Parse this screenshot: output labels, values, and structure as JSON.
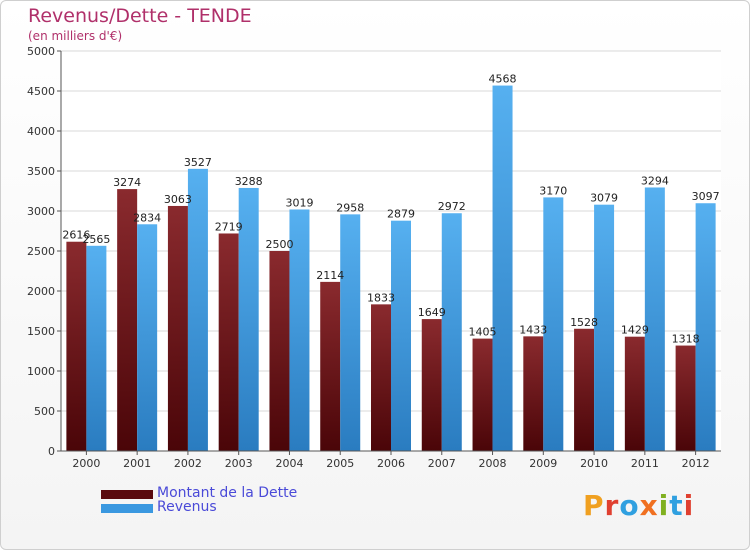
{
  "chart_data": {
    "type": "bar",
    "title": "Revenus/Dette - TENDE",
    "subtitle": "(en milliers d'€)",
    "categories": [
      "2000",
      "2001",
      "2002",
      "2003",
      "2004",
      "2005",
      "2006",
      "2007",
      "2008",
      "2009",
      "2010",
      "2011",
      "2012"
    ],
    "series": [
      {
        "name": "Montant de la Dette",
        "values": [
          2616,
          3274,
          3063,
          2719,
          2500,
          2114,
          1833,
          1649,
          1405,
          1433,
          1528,
          1429,
          1318
        ],
        "color": "#7a1a1e"
      },
      {
        "name": "Revenus",
        "values": [
          2565,
          2834,
          3527,
          3288,
          3019,
          2958,
          2879,
          2972,
          4568,
          3170,
          3079,
          3294,
          3097
        ],
        "color": "#3a98e0"
      }
    ],
    "ylim": [
      0,
      5000
    ],
    "yticks": [
      "0",
      "500",
      "1000",
      "1500",
      "2000",
      "2500",
      "3000",
      "3500",
      "4000",
      "4500",
      "5000"
    ],
    "grid": true,
    "legend_position": "bottom-left"
  },
  "logo": {
    "text": "Proxiti",
    "letters": [
      "P",
      "r",
      "o",
      "x",
      "i",
      "t",
      "i"
    ],
    "colors": [
      "#f0a020",
      "#e04030",
      "#30a0e0",
      "#f07020",
      "#80b020",
      "#30a0e0",
      "#e04030"
    ]
  }
}
